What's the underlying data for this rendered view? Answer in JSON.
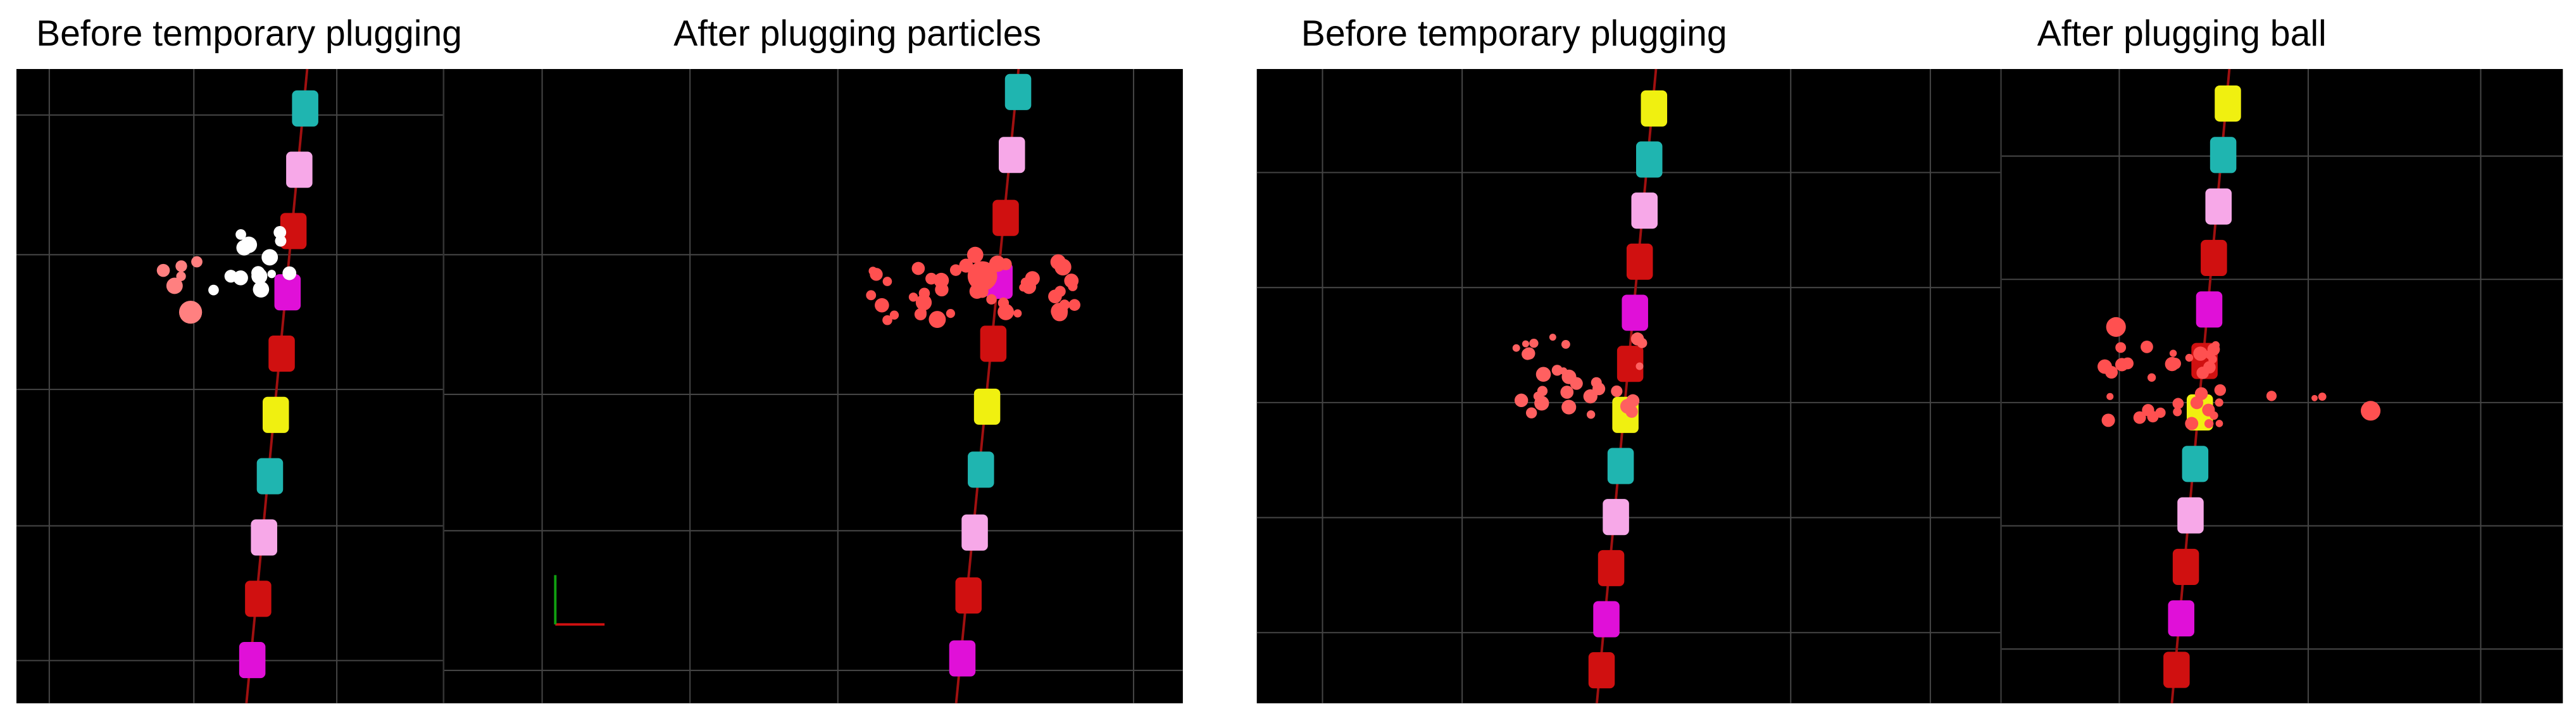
{
  "panels": [
    {
      "label": "Before temporary plugging"
    },
    {
      "label": "After plugging particles"
    },
    {
      "label": "Before temporary plugging"
    },
    {
      "label": "After plugging ball"
    }
  ]
}
